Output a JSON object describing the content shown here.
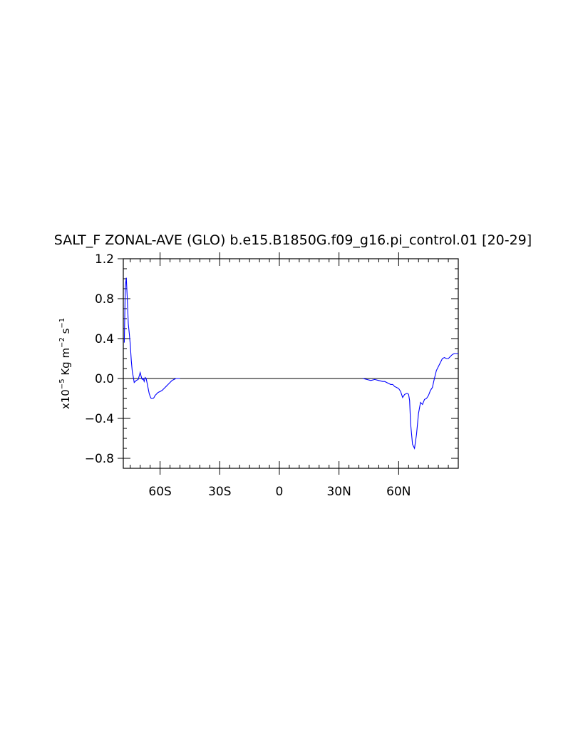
{
  "chart_data": {
    "type": "line",
    "title": "SALT_F ZONAL-AVE (GLO) b.e15.B1850G.f09_g16.pi_control.01 [20-29]",
    "ylabel_parts": {
      "base": "x10",
      "exp1": "−5",
      "units_a": " Kg m",
      "exp2": "−2",
      "units_b": " s",
      "exp3": "−1"
    },
    "xlim": [
      -78.5,
      90
    ],
    "ylim": [
      -0.9,
      1.2
    ],
    "xticks": [
      {
        "value": -60,
        "label": "60S"
      },
      {
        "value": -30,
        "label": "30S"
      },
      {
        "value": 0,
        "label": "0"
      },
      {
        "value": 30,
        "label": "30N"
      },
      {
        "value": 60,
        "label": "60N"
      }
    ],
    "yticks": [
      {
        "value": 1.2,
        "label": "1.2"
      },
      {
        "value": 0.8,
        "label": "0.8"
      },
      {
        "value": 0.4,
        "label": "0.4"
      },
      {
        "value": 0.0,
        "label": "0.0"
      },
      {
        "value": -0.4,
        "label": "−0.4"
      },
      {
        "value": -0.8,
        "label": "−0.8"
      }
    ],
    "zero_line": true,
    "line_color": "#0000ff",
    "series": [
      {
        "x": [
          -78,
          -77.5,
          -77,
          -76.5,
          -76,
          -75.5,
          -75,
          -74.5,
          -74,
          -73.5,
          -73,
          -72,
          -71,
          -70,
          -69.5,
          -69,
          -68.5,
          -68,
          -67.5,
          -67,
          -66.5,
          -66,
          -65.5,
          -65,
          -64.5,
          -64,
          -63.5,
          -63,
          -62.5,
          -62,
          -61,
          -60,
          -59,
          -58,
          -57,
          -56,
          -55,
          -54,
          -53,
          -52,
          -51,
          -50,
          42,
          44,
          46,
          48,
          50,
          52,
          53,
          54,
          55,
          56,
          57,
          58,
          59,
          60,
          61,
          62,
          63,
          64,
          64.5,
          65,
          65.5,
          66,
          67,
          68,
          69,
          70,
          71,
          72,
          73,
          74,
          75,
          76,
          77,
          78,
          79,
          80,
          81,
          82,
          83,
          84,
          85,
          86,
          87,
          88,
          89,
          90
        ],
        "y": [
          0.36,
          0.92,
          1.01,
          0.8,
          0.55,
          0.45,
          0.34,
          0.18,
          0.07,
          0.02,
          -0.04,
          -0.02,
          -0.01,
          0.06,
          0.02,
          -0.01,
          0.0,
          -0.03,
          0.01,
          0.0,
          -0.05,
          -0.1,
          -0.15,
          -0.18,
          -0.2,
          -0.2,
          -0.2,
          -0.19,
          -0.17,
          -0.16,
          -0.14,
          -0.13,
          -0.12,
          -0.1,
          -0.08,
          -0.06,
          -0.04,
          -0.02,
          -0.01,
          0.0,
          0.0,
          0.0,
          0.0,
          -0.01,
          -0.02,
          -0.01,
          -0.02,
          -0.03,
          -0.03,
          -0.04,
          -0.05,
          -0.06,
          -0.06,
          -0.08,
          -0.09,
          -0.1,
          -0.13,
          -0.19,
          -0.16,
          -0.15,
          -0.15,
          -0.16,
          -0.22,
          -0.45,
          -0.66,
          -0.7,
          -0.56,
          -0.35,
          -0.24,
          -0.26,
          -0.21,
          -0.2,
          -0.17,
          -0.12,
          -0.09,
          0.0,
          0.08,
          0.12,
          0.16,
          0.2,
          0.21,
          0.2,
          0.2,
          0.22,
          0.24,
          0.25,
          0.25,
          0.25
        ]
      }
    ]
  }
}
